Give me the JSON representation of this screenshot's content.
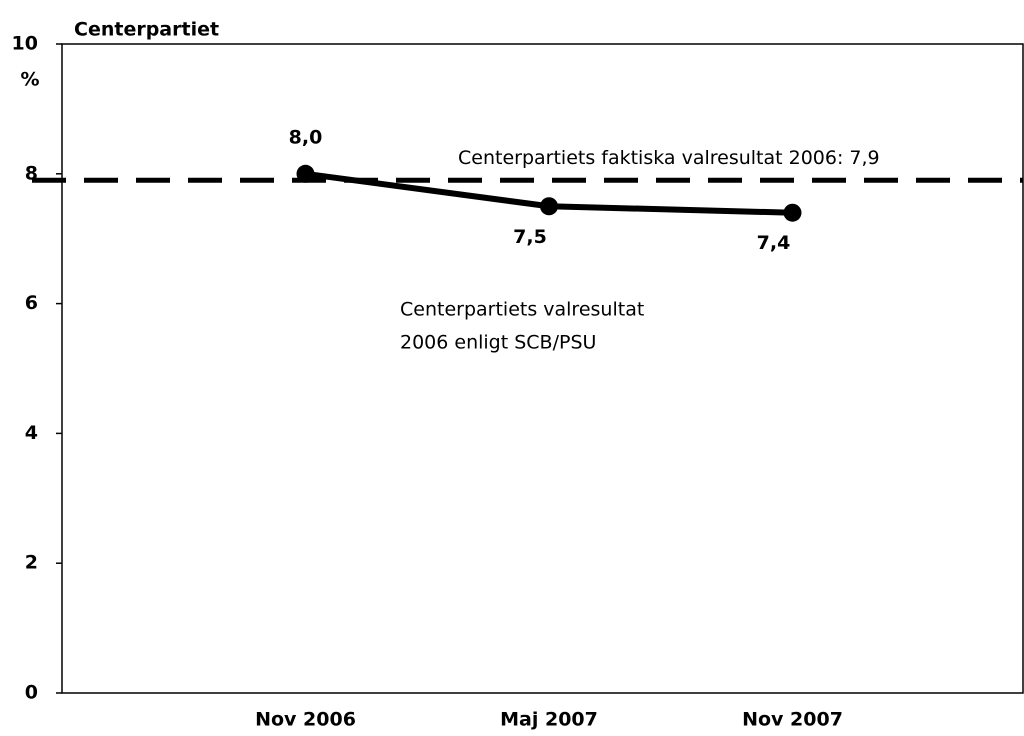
{
  "chart_data": {
    "type": "line",
    "title": "Centerpartiet",
    "y_label": "%",
    "categories": [
      "Nov 2006",
      "Maj 2007",
      "Nov 2007"
    ],
    "values": [
      8.0,
      7.5,
      7.4
    ],
    "value_labels": [
      "8,0",
      "7,5",
      "7,4"
    ],
    "color": "#000000",
    "ylim": [
      0,
      10
    ],
    "yticks": [
      0,
      2,
      4,
      6,
      8,
      10
    ],
    "reference_line": {
      "value": 7.9,
      "label": "Centerpartiets faktiska valresultat 2006: 7,9"
    },
    "annotations": [
      "Centerpartiets valresultat",
      "2006 enligt SCB/PSU"
    ]
  }
}
